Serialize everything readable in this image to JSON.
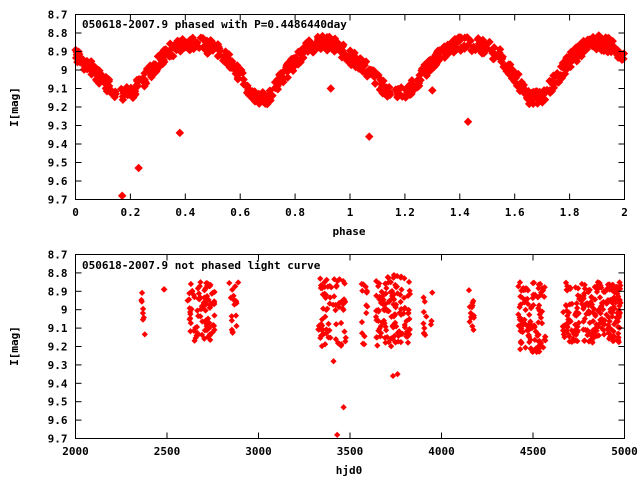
{
  "colors": {
    "series": "#ff0000",
    "axis": "#000000",
    "background": "#ffffff"
  },
  "chart_data": [
    {
      "type": "scatter",
      "title": "050618-2007.9 phased with P=0.4486440day",
      "xlabel": "phase",
      "ylabel": "I[mag]",
      "xlim": [
        0,
        2
      ],
      "ylim": [
        8.7,
        9.7
      ],
      "y_inverted": true,
      "grid": false,
      "legend": "none",
      "xticks": [
        "0",
        "0.2",
        "0.4",
        "0.6",
        "0.8",
        "1",
        "1.2",
        "1.4",
        "1.6",
        "1.8",
        "2"
      ],
      "yticks": [
        "8.7",
        "8.8",
        "8.9",
        "9",
        "9.1",
        "9.2",
        "9.3",
        "9.4",
        "9.5",
        "9.6",
        "9.7"
      ],
      "period_days": 0.448644,
      "curve": {
        "description_points_phase": [
          0.0,
          0.05,
          0.1,
          0.15,
          0.2,
          0.25,
          0.3,
          0.35,
          0.4,
          0.45,
          0.5,
          0.55,
          0.6,
          0.65,
          0.7,
          0.75,
          0.8,
          0.85,
          0.9,
          0.95,
          1.0
        ],
        "description_points_mag": [
          8.93,
          8.98,
          9.06,
          9.13,
          9.13,
          9.05,
          8.96,
          8.89,
          8.86,
          8.86,
          8.88,
          8.93,
          9.03,
          9.15,
          9.15,
          9.05,
          8.95,
          8.88,
          8.85,
          8.87,
          8.93
        ],
        "scatter_mag": 0.04
      },
      "outliers": [
        {
          "x": 0.17,
          "y": 9.68
        },
        {
          "x": 0.23,
          "y": 9.53
        },
        {
          "x": 0.38,
          "y": 9.34
        },
        {
          "x": 0.93,
          "y": 9.1
        },
        {
          "x": 1.07,
          "y": 9.36
        },
        {
          "x": 1.3,
          "y": 9.11
        },
        {
          "x": 1.43,
          "y": 9.28
        }
      ]
    },
    {
      "type": "scatter",
      "title": "050618-2007.9 not phased light curve",
      "xlabel": "hjd0",
      "ylabel": "I[mag]",
      "xlim": [
        2000,
        5000
      ],
      "ylim": [
        8.7,
        9.7
      ],
      "y_inverted": true,
      "grid": false,
      "legend": "none",
      "xticks": [
        "2000",
        "2500",
        "3000",
        "3500",
        "4000",
        "4500",
        "5000"
      ],
      "yticks": [
        "8.7",
        "8.8",
        "8.9",
        "9",
        "9.1",
        "9.2",
        "9.3",
        "9.4",
        "9.5",
        "9.6",
        "9.7"
      ],
      "seasons": [
        {
          "x_range": [
            2360,
            2380
          ],
          "y_range": [
            8.9,
            9.17
          ],
          "count": 8
        },
        {
          "x_range": [
            2480,
            2495
          ],
          "y_range": [
            8.88,
            8.9
          ],
          "count": 2
        },
        {
          "x_range": [
            2610,
            2760
          ],
          "y_range": [
            8.85,
            9.17
          ],
          "count": 90
        },
        {
          "x_range": [
            2840,
            2890
          ],
          "y_range": [
            8.85,
            9.15
          ],
          "count": 18
        },
        {
          "x_range": [
            3320,
            3480
          ],
          "y_range": [
            8.83,
            9.2
          ],
          "count": 70
        },
        {
          "x_range": [
            3560,
            3600
          ],
          "y_range": [
            8.86,
            9.2
          ],
          "count": 14
        },
        {
          "x_range": [
            3640,
            3830
          ],
          "y_range": [
            8.81,
            9.2
          ],
          "count": 130
        },
        {
          "x_range": [
            3900,
            3950
          ],
          "y_range": [
            8.88,
            9.17
          ],
          "count": 12
        },
        {
          "x_range": [
            4150,
            4180
          ],
          "y_range": [
            8.86,
            9.12
          ],
          "count": 14
        },
        {
          "x_range": [
            4420,
            4570
          ],
          "y_range": [
            8.85,
            9.23
          ],
          "count": 110
        },
        {
          "x_range": [
            4660,
            4980
          ],
          "y_range": [
            8.85,
            9.18
          ],
          "count": 230
        }
      ],
      "outliers": [
        {
          "x": 3410,
          "y": 9.28
        },
        {
          "x": 3430,
          "y": 9.68
        },
        {
          "x": 3465,
          "y": 9.53
        },
        {
          "x": 3735,
          "y": 9.36
        },
        {
          "x": 3760,
          "y": 9.35
        }
      ]
    }
  ]
}
